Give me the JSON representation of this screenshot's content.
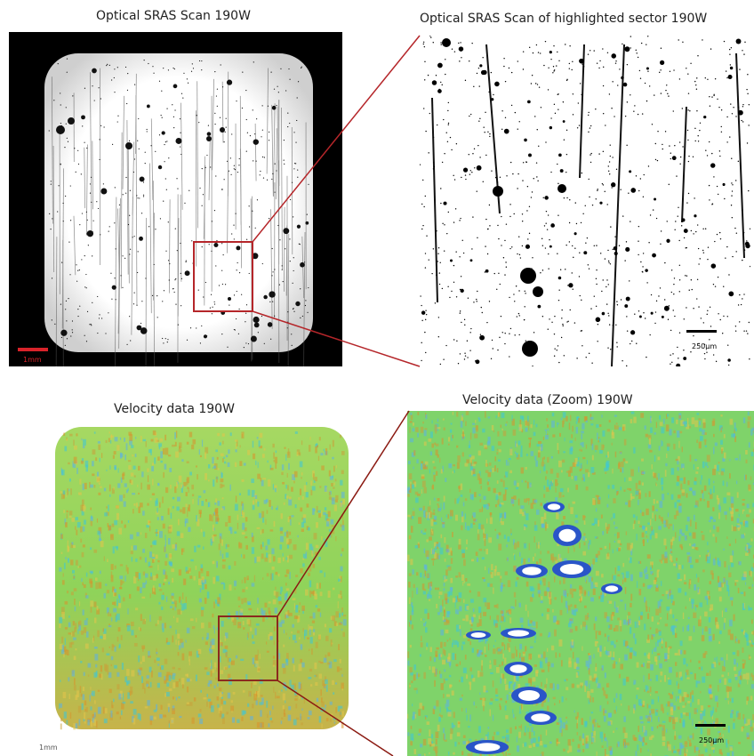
{
  "panels": {
    "optical_full": {
      "title": "Optical SRAS Scan 190W",
      "scale_label": "1mm"
    },
    "optical_zoom": {
      "title": "Optical SRAS Scan of highlighted sector 190W",
      "scale_label": "250µm"
    },
    "velocity_full": {
      "title": "Velocity data 190W",
      "scale_label": "1mm"
    },
    "velocity_zoom": {
      "title": "Velocity data (Zoom) 190W",
      "scale_label": "250µm"
    }
  },
  "colors": {
    "highlight": "#b5262a",
    "velocity_base": "#8fd35a",
    "velocity_cyan": "#3cc6d8",
    "velocity_orange": "#d9912b",
    "velocity_blue": "#2a55c8"
  }
}
